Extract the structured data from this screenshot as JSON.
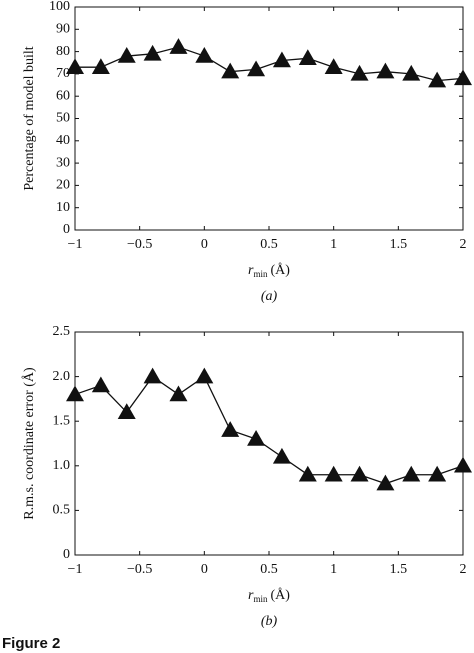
{
  "chart_data": [
    {
      "type": "line",
      "color": "#111111",
      "ylabel": "Percentage of model built",
      "xlabel": {
        "symbol": "r",
        "subscript": "min",
        "unit": "(Å)"
      },
      "caption": "(a)",
      "x": [
        -1,
        -0.8,
        -0.6,
        -0.4,
        -0.2,
        0,
        0.2,
        0.4,
        0.6,
        0.8,
        1,
        1.2,
        1.4,
        1.6,
        1.8,
        2
      ],
      "values": [
        73,
        73,
        78,
        79,
        82,
        78,
        71,
        72,
        76,
        77,
        73,
        70,
        71,
        70,
        67,
        68
      ],
      "xlim": [
        -1,
        2
      ],
      "xticks": [
        {
          "value": -1,
          "label": "−1"
        },
        {
          "value": -0.5,
          "label": "−0.5"
        },
        0,
        0.5,
        1,
        1.5,
        2
      ],
      "ylim": [
        0,
        100
      ],
      "yticks": [
        0,
        10,
        20,
        30,
        40,
        50,
        60,
        70,
        80,
        90,
        100
      ]
    },
    {
      "type": "line",
      "color": "#111111",
      "ylabel": "R.m.s. coordinate error (Å)",
      "xlabel": {
        "symbol": "r",
        "subscript": "min",
        "unit": "(Å)"
      },
      "caption": "(b)",
      "x": [
        -1,
        -0.8,
        -0.6,
        -0.4,
        -0.2,
        0,
        0.2,
        0.4,
        0.6,
        0.8,
        1,
        1.2,
        1.4,
        1.6,
        1.8,
        2
      ],
      "values": [
        1.8,
        1.9,
        1.6,
        2.0,
        1.8,
        2.0,
        1.4,
        1.3,
        1.1,
        0.9,
        0.9,
        0.9,
        0.8,
        0.9,
        0.9,
        1.0
      ],
      "xlim": [
        -1,
        2
      ],
      "xticks": [
        {
          "value": -1,
          "label": "−1"
        },
        {
          "value": -0.5,
          "label": "−0.5"
        },
        0,
        0.5,
        1,
        1.5,
        2
      ],
      "ylim": [
        0,
        2.5
      ],
      "yticks": [
        0,
        0.5,
        {
          "value": 1,
          "label": "1.0"
        },
        1.5,
        {
          "value": 2,
          "label": "2.0"
        },
        2.5
      ]
    }
  ],
  "figure_label": "Figure 2"
}
